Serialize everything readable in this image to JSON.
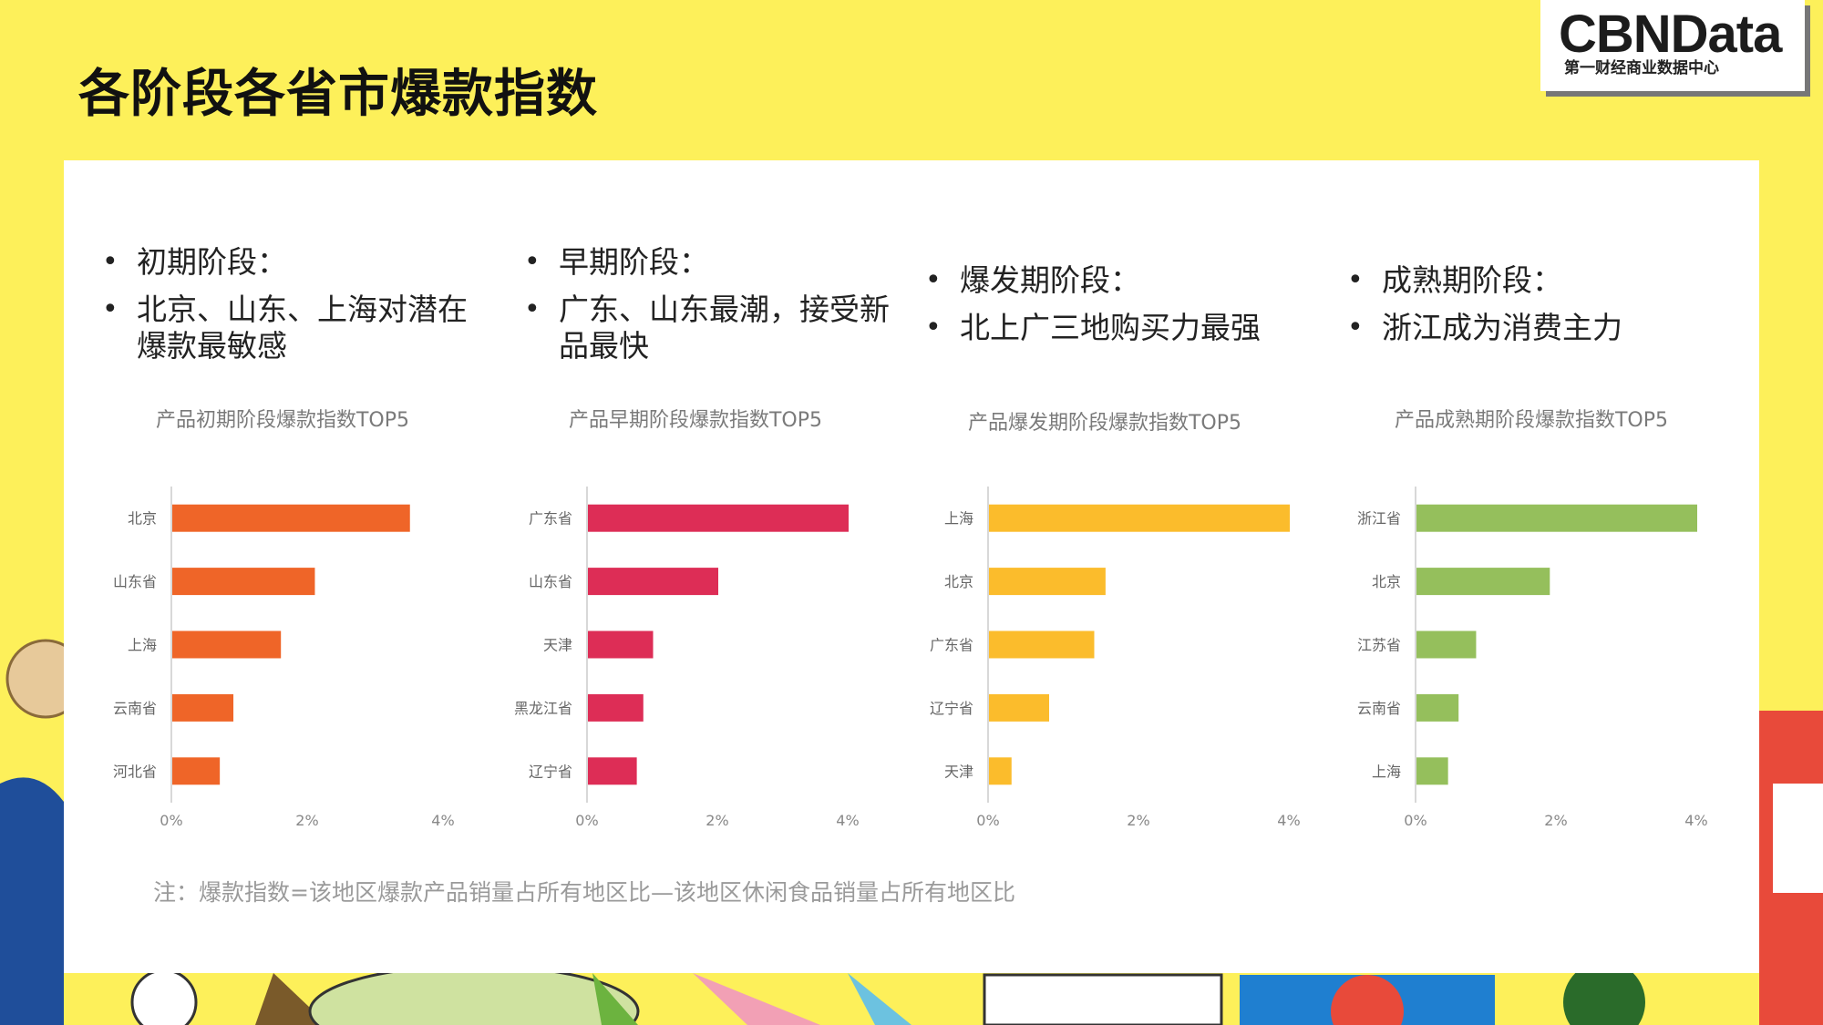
{
  "title": "各阶段各省市爆款指数",
  "logo": {
    "brand": "CBNData",
    "sub": "第一财经商业数据中心"
  },
  "sections": [
    {
      "bullets": [
        "初期阶段：",
        "北京、山东、上海对潜在爆款最敏感"
      ]
    },
    {
      "bullets": [
        "早期阶段：",
        "广东、山东最潮，接受新品最快"
      ]
    },
    {
      "bullets": [
        "爆发期阶段：",
        "北上广三地购买力最强"
      ]
    },
    {
      "bullets": [
        "成熟期阶段：",
        "浙江成为消费主力"
      ]
    }
  ],
  "note": "注：爆款指数=该地区爆款产品销量占所有地区比—该地区休闲食品销量占所有地区比",
  "chart_data": [
    {
      "type": "bar",
      "orientation": "horizontal",
      "title": "产品初期阶段爆款指数TOP5",
      "categories": [
        "北京",
        "山东省",
        "上海",
        "云南省",
        "河北省"
      ],
      "values": [
        3.5,
        2.1,
        1.6,
        0.9,
        0.7
      ],
      "xlim": [
        0,
        4
      ],
      "xticks": [
        "0%",
        "2%",
        "4%"
      ],
      "color": "#ef6528"
    },
    {
      "type": "bar",
      "orientation": "horizontal",
      "title": "产品早期阶段爆款指数TOP5",
      "categories": [
        "广东省",
        "山东省",
        "天津",
        "黑龙江省",
        "辽宁省"
      ],
      "values": [
        4.0,
        2.0,
        1.0,
        0.85,
        0.75
      ],
      "xlim": [
        0,
        4
      ],
      "xticks": [
        "0%",
        "2%",
        "4%"
      ],
      "color": "#dd2d56"
    },
    {
      "type": "bar",
      "orientation": "horizontal",
      "title": "产品爆发期阶段爆款指数TOP5",
      "categories": [
        "上海",
        "北京",
        "广东省",
        "辽宁省",
        "天津"
      ],
      "values": [
        4.0,
        1.55,
        1.4,
        0.8,
        0.3
      ],
      "xlim": [
        0,
        4
      ],
      "xticks": [
        "0%",
        "2%",
        "4%"
      ],
      "color": "#fbbc2c"
    },
    {
      "type": "bar",
      "orientation": "horizontal",
      "title": "产品成熟期阶段爆款指数TOP5",
      "categories": [
        "浙江省",
        "北京",
        "江苏省",
        "云南省",
        "上海"
      ],
      "values": [
        4.0,
        1.9,
        0.85,
        0.6,
        0.45
      ],
      "xlim": [
        0,
        4
      ],
      "xticks": [
        "0%",
        "2%",
        "4%"
      ],
      "color": "#95bf5c"
    }
  ]
}
